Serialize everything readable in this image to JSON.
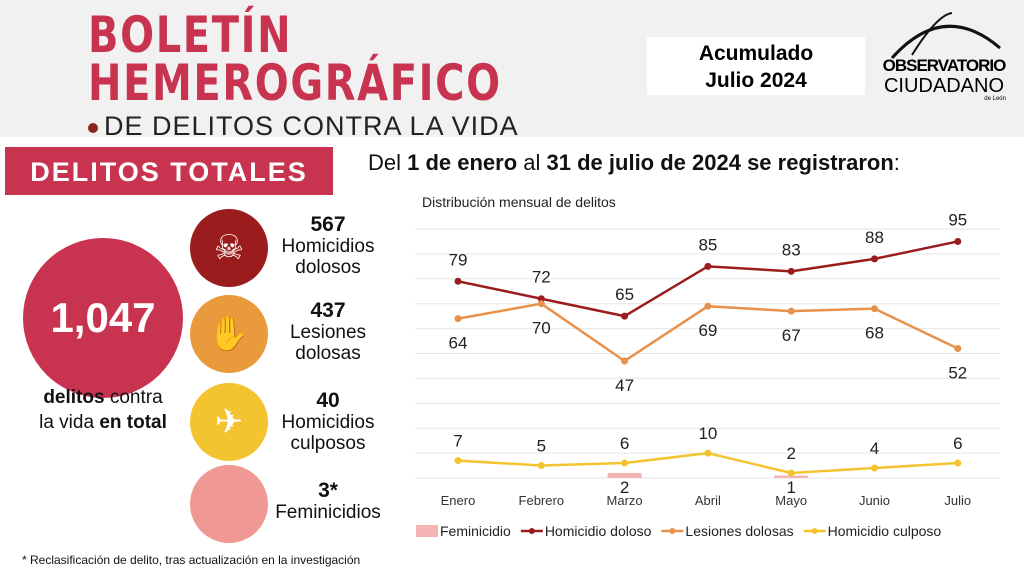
{
  "header": {
    "title_line1": "BOLETÍN",
    "title_line2": "HEMEROGRÁFICO",
    "subtitle": "DE DELITOS CONTRA LA VIDA",
    "period_line1": "Acumulado",
    "period_line2": "Julio 2024",
    "logo_line1": "OBSERVATORIO",
    "logo_line2": "CIUDADANO",
    "logo_line3": "de León"
  },
  "band": "DELITOS TOTALES",
  "lead": {
    "a": "Del ",
    "b": "1 de enero",
    "c": " al ",
    "d": "31 de julio de 2024 se registraron",
    ":": ":"
  },
  "total": {
    "value": "1,047",
    "l1a": "delitos",
    "l1b": " contra",
    "l2a": "la vida ",
    "l2b": "en total"
  },
  "stats": [
    {
      "value": "567",
      "l1": "Homicidios",
      "l2": "dolosos",
      "icon": "homicide-icon",
      "color": "#9b1c1c"
    },
    {
      "value": "437",
      "l1": "Lesiones",
      "l2": "dolosas",
      "icon": "hand-icon",
      "color": "#e89a3c"
    },
    {
      "value": "40",
      "l1": "Homicidios",
      "l2": "culposos",
      "icon": "accident-icon",
      "color": "#f4c430"
    },
    {
      "value": "3*",
      "l1": "Feminicidios",
      "l2": "",
      "icon": "",
      "color": "#f09894"
    }
  ],
  "footnote": "* Reclasificación de delito, tras actualización en la investigación",
  "chart_data": {
    "type": "line",
    "title": "Distribución mensual de delitos",
    "categories": [
      "Enero",
      "Febrero",
      "Marzo",
      "Abril",
      "Mayo",
      "Junio",
      "Julio"
    ],
    "ylim": [
      0,
      100
    ],
    "grid": true,
    "legend": "bottom",
    "series": [
      {
        "name": "Feminicidio",
        "kind": "bar",
        "color": "#f4b4b4",
        "values": [
          0,
          0,
          2,
          0,
          1,
          0,
          0
        ]
      },
      {
        "name": "Homicidio doloso",
        "color": "#9b1c1c",
        "values": [
          79,
          72,
          65,
          85,
          83,
          88,
          95
        ]
      },
      {
        "name": "Lesiones dolosas",
        "color": "#e8914a",
        "values": [
          64,
          70,
          47,
          69,
          67,
          68,
          52
        ]
      },
      {
        "name": "Homicidio culposo",
        "color": "#f4c430",
        "values": [
          7,
          5,
          6,
          10,
          2,
          4,
          6
        ]
      }
    ]
  }
}
